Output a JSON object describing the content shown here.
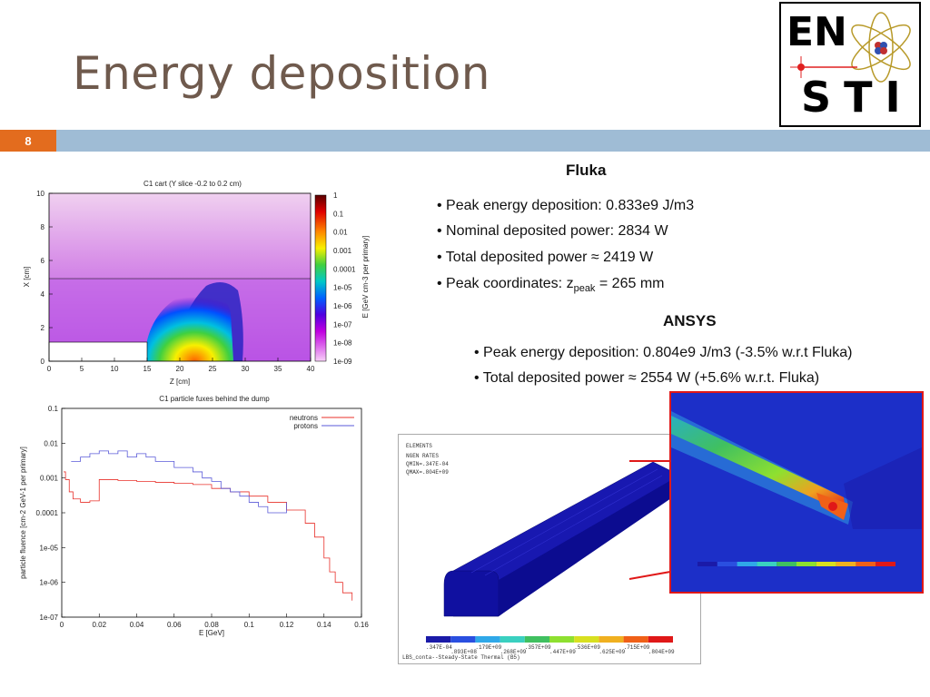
{
  "title": "Energy deposition",
  "slide_number": "8",
  "logo": {
    "line1": "EN",
    "line2": "STI"
  },
  "fluka": {
    "heading": "Fluka",
    "bullets": [
      "Peak energy deposition: 0.833e9 J/m3",
      "Nominal deposited power: 2834 W",
      "Total deposited power ≈ 2419 W"
    ],
    "peak_coord": {
      "prefix": "Peak coordinates: z",
      "sub": "peak",
      "suffix": " = 265 mm"
    }
  },
  "ansys": {
    "heading": "ANSYS",
    "bullets": [
      "Peak energy deposition: 0.804e9 J/m3 (-3.5% w.r.t Fluka)",
      "Total deposited power ≈ 2554 W (+5.6% w.r.t. Fluka)"
    ]
  },
  "heatmap": {
    "title": "C1 cart (Y slice -0.2 to 0.2 cm)",
    "xlabel": "Z [cm]",
    "ylabel": "X [cm]",
    "x_ticks": [
      "0",
      "5",
      "10",
      "15",
      "20",
      "25",
      "30",
      "35",
      "40"
    ],
    "y_ticks": [
      "0",
      "2",
      "4",
      "6",
      "8",
      "10"
    ],
    "colorbar_label": "E [GeV cm-3 per primary]",
    "colorbar_ticks": [
      "1",
      "0.1",
      "0.01",
      "0.001",
      "0.0001",
      "1e-05",
      "1e-06",
      "1e-07",
      "1e-08",
      "1e-09"
    ]
  },
  "chart_data": {
    "type": "line",
    "title": "C1 particle fuxes behind the dump",
    "xlabel": "E [GeV]",
    "ylabel": "particle fluence [cm-2 GeV-1 per primary]",
    "xlim": [
      0,
      0.16
    ],
    "ylim": [
      1e-07,
      0.1
    ],
    "log_y": true,
    "x_ticks": [
      "0",
      "0.02",
      "0.04",
      "0.06",
      "0.08",
      "0.1",
      "0.12",
      "0.14",
      "0.16"
    ],
    "y_ticks": [
      "0.1",
      "0.01",
      "0.001",
      "0.0001",
      "1e-05",
      "1e-06",
      "1e-07"
    ],
    "legend_position": "top-right",
    "series": [
      {
        "name": "neutrons",
        "color": "#e8302a",
        "x": [
          0.001,
          0.002,
          0.004,
          0.006,
          0.01,
          0.015,
          0.02,
          0.02,
          0.03,
          0.04,
          0.05,
          0.06,
          0.07,
          0.08,
          0.09,
          0.1,
          0.11,
          0.12,
          0.13,
          0.135,
          0.14,
          0.143,
          0.146,
          0.15,
          0.155
        ],
        "y": [
          0.0015,
          0.0009,
          0.0004,
          0.00025,
          0.0002,
          0.00022,
          0.00025,
          0.0009,
          0.00085,
          0.0008,
          0.00075,
          0.0007,
          0.00065,
          0.0005,
          0.0004,
          0.0003,
          0.0002,
          0.00012,
          5e-05,
          2e-05,
          5e-06,
          2e-06,
          1e-06,
          5e-07,
          3e-07
        ]
      },
      {
        "name": "protons",
        "color": "#5a5ad8",
        "x": [
          0.005,
          0.01,
          0.015,
          0.02,
          0.025,
          0.03,
          0.035,
          0.04,
          0.045,
          0.05,
          0.055,
          0.06,
          0.065,
          0.07,
          0.075,
          0.08,
          0.085,
          0.09,
          0.095,
          0.1,
          0.105,
          0.11,
          0.115,
          0.12
        ],
        "y": [
          0.003,
          0.004,
          0.005,
          0.006,
          0.005,
          0.006,
          0.004,
          0.005,
          0.004,
          0.003,
          0.003,
          0.002,
          0.002,
          0.0015,
          0.001,
          0.0008,
          0.0005,
          0.0004,
          0.0003,
          0.0002,
          0.00015,
          0.0001,
          0.0001,
          0.0002
        ]
      }
    ]
  },
  "ansys_panel": {
    "header_lines": [
      "ELEMENTS",
      "NGEN RATES",
      "QMIN=.347E-04",
      "QMAX=.804E+09"
    ],
    "legend_top": [
      ".347E-04",
      ".179E+09",
      ".357E+09",
      ".536E+09",
      ".715E+09"
    ],
    "legend_bottom": [
      ".893E+08",
      ".268E+09",
      ".447E+09",
      ".625E+09",
      ".804E+09"
    ],
    "footer": "LBS_conta--Steady-State Thermal (B5)",
    "legend_colors": [
      "#1a1aa8",
      "#2a4fe0",
      "#2fa8e8",
      "#3ad0c0",
      "#40c060",
      "#8ee030",
      "#d8e020",
      "#f0b020",
      "#f06018",
      "#e01818"
    ]
  }
}
